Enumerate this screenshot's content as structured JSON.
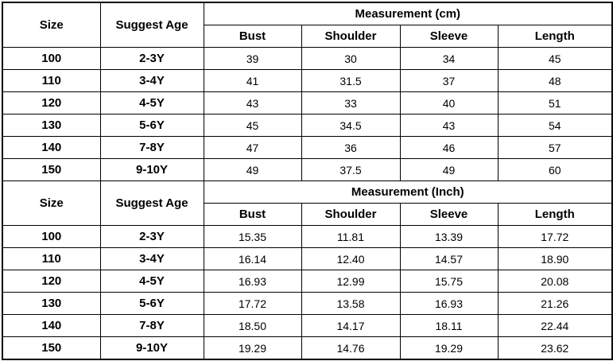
{
  "tables": [
    {
      "header": {
        "size": "Size",
        "age": "Suggest Age",
        "measurement": "Measurement (cm)",
        "columns": [
          "Bust",
          "Shoulder",
          "Sleeve",
          "Length"
        ]
      },
      "rows": [
        [
          "100",
          "2-3Y",
          "39",
          "30",
          "34",
          "45"
        ],
        [
          "110",
          "3-4Y",
          "41",
          "31.5",
          "37",
          "48"
        ],
        [
          "120",
          "4-5Y",
          "43",
          "33",
          "40",
          "51"
        ],
        [
          "130",
          "5-6Y",
          "45",
          "34.5",
          "43",
          "54"
        ],
        [
          "140",
          "7-8Y",
          "47",
          "36",
          "46",
          "57"
        ],
        [
          "150",
          "9-10Y",
          "49",
          "37.5",
          "49",
          "60"
        ]
      ]
    },
    {
      "header": {
        "size": "Size",
        "age": "Suggest Age",
        "measurement": "Measurement (Inch)",
        "columns": [
          "Bust",
          "Shoulder",
          "Sleeve",
          "Length"
        ]
      },
      "rows": [
        [
          "100",
          "2-3Y",
          "15.35",
          "11.81",
          "13.39",
          "17.72"
        ],
        [
          "110",
          "3-4Y",
          "16.14",
          "12.40",
          "14.57",
          "18.90"
        ],
        [
          "120",
          "4-5Y",
          "16.93",
          "12.99",
          "15.75",
          "20.08"
        ],
        [
          "130",
          "5-6Y",
          "17.72",
          "13.58",
          "16.93",
          "21.26"
        ],
        [
          "140",
          "7-8Y",
          "18.50",
          "14.17",
          "18.11",
          "22.44"
        ],
        [
          "150",
          "9-10Y",
          "19.29",
          "14.76",
          "19.29",
          "23.62"
        ]
      ]
    }
  ]
}
